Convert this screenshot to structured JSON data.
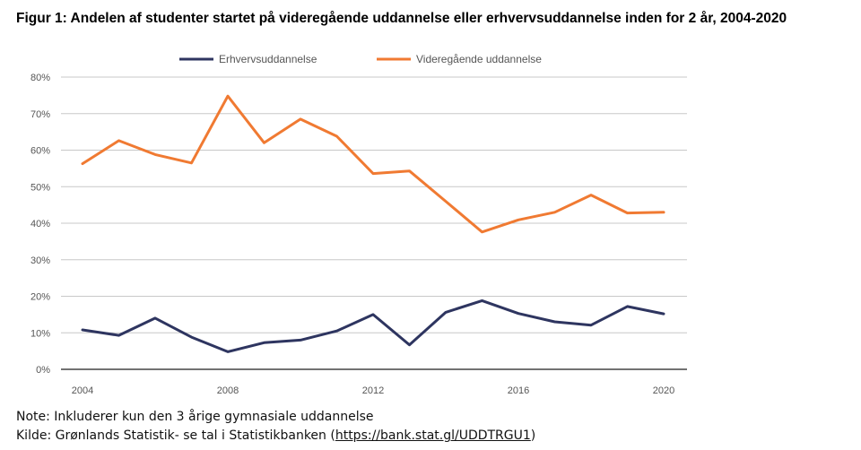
{
  "title": "Figur 1: Andelen af studenter startet på videregående uddannelse eller erhvervsuddannelse inden for 2 år, 2004-2020",
  "notes": {
    "note": "Note: Inkluderer kun den 3 årige gymnasiale uddannelse",
    "source_prefix": "Kilde: Grønlands Statistik- se tal i Statistikbanken (",
    "source_link": "https://bank.stat.gl/UDDTRGU1",
    "source_suffix": ")"
  },
  "chart_data": {
    "type": "line",
    "x": [
      2004,
      2005,
      2006,
      2007,
      2008,
      2009,
      2010,
      2011,
      2012,
      2013,
      2014,
      2015,
      2016,
      2017,
      2018,
      2019,
      2020
    ],
    "x_ticks": [
      "2004",
      "2008",
      "2012",
      "2016",
      "2020"
    ],
    "y_ticks": [
      "0%",
      "10%",
      "20%",
      "30%",
      "40%",
      "50%",
      "60%",
      "70%",
      "80%"
    ],
    "ylim": [
      0,
      80
    ],
    "grid": true,
    "legend_position": "top",
    "series": [
      {
        "name": "Erhvervsuddannelse",
        "color": "#2e3560",
        "values": [
          10.8,
          9.3,
          14.0,
          8.8,
          4.8,
          7.3,
          8.0,
          10.5,
          15.0,
          6.7,
          15.6,
          18.8,
          15.3,
          13.0,
          12.1,
          17.2,
          15.2
        ]
      },
      {
        "name": "Videregående uddannelse",
        "color": "#f07a32",
        "values": [
          56.3,
          62.6,
          58.8,
          56.5,
          74.8,
          62.0,
          68.5,
          63.8,
          53.6,
          54.3,
          46.0,
          37.6,
          40.9,
          43.0,
          47.7,
          42.8,
          43.0
        ]
      }
    ]
  }
}
